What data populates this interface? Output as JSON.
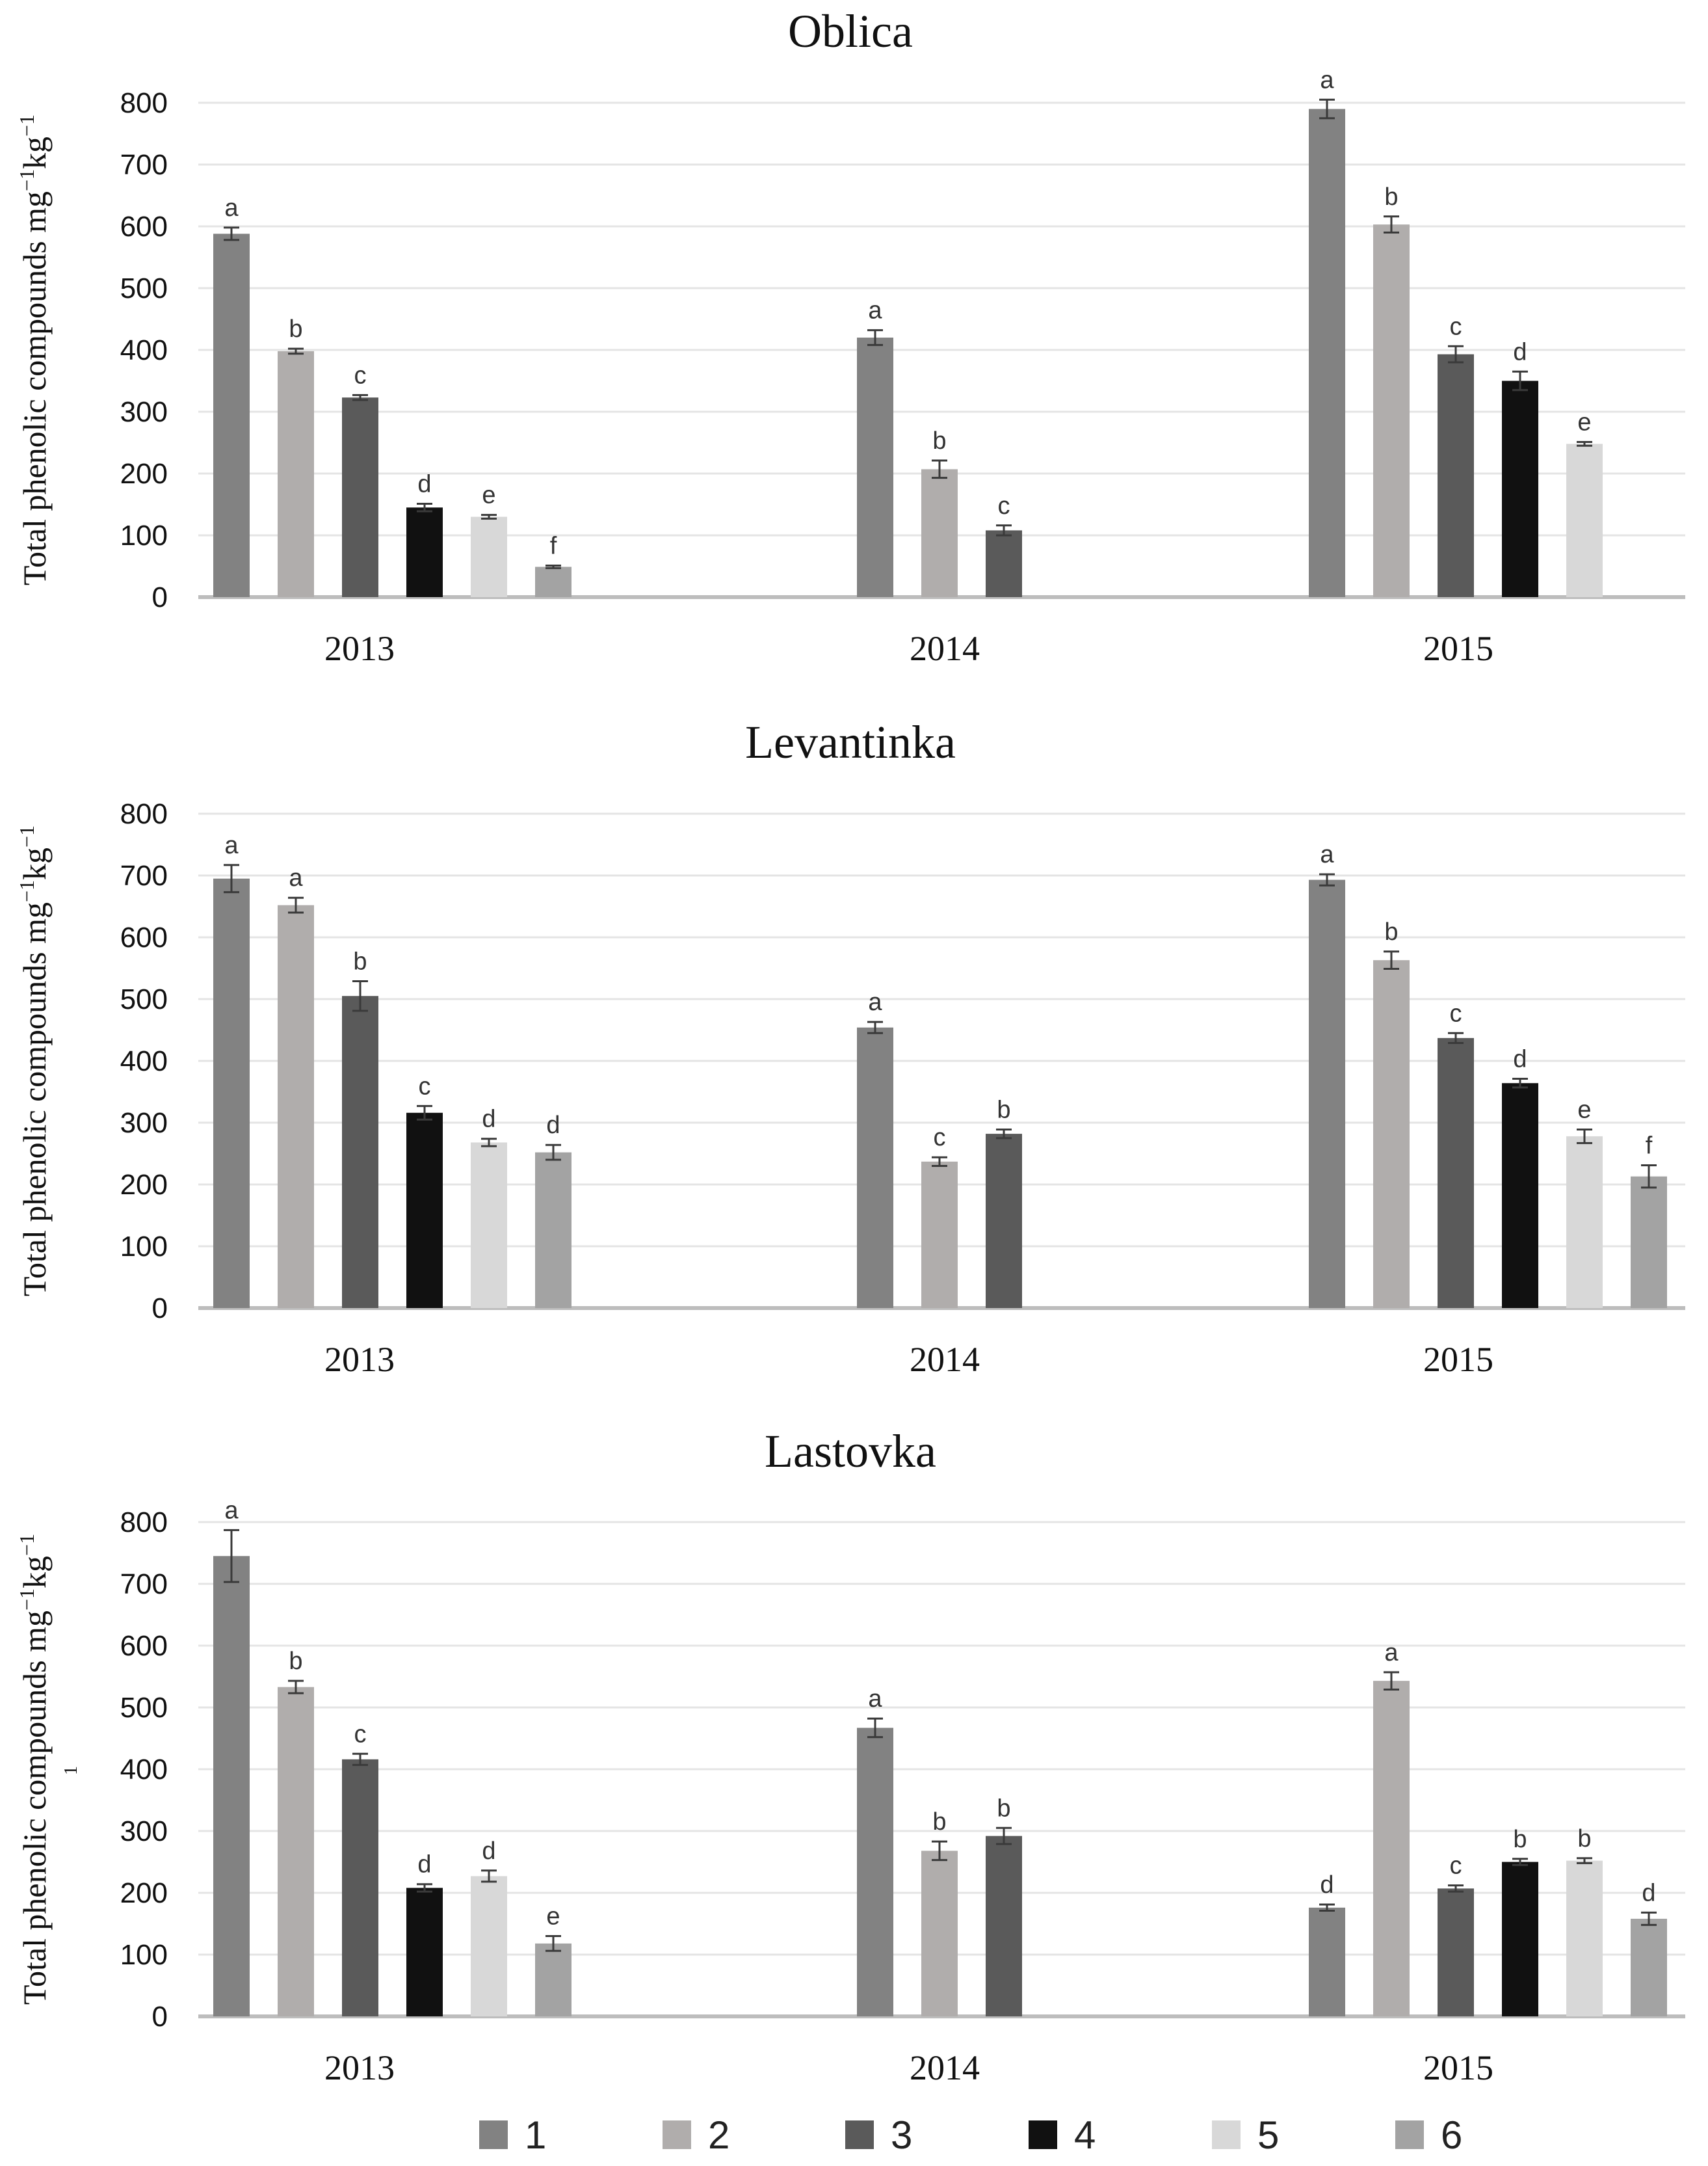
{
  "figure": {
    "stray_mark": "1"
  },
  "series_colors": {
    "1": "#828282",
    "2": "#b0adac",
    "3": "#5a5a5a",
    "4": "#111111",
    "5": "#d8d8d8",
    "6": "#a3a3a3"
  },
  "legend": {
    "items": [
      "1",
      "2",
      "3",
      "4",
      "5",
      "6"
    ]
  },
  "chart_data": [
    {
      "type": "bar",
      "title": "Oblica",
      "ylabel": "Total phenolic  compounds mg",
      "ylabel_sup1": "−1",
      "ylabel_unit": "kg",
      "ylabel_sup2": "−1",
      "ylim": [
        0,
        800
      ],
      "yticks": [
        "0",
        "100",
        "200",
        "300",
        "400",
        "500",
        "600",
        "700",
        "800"
      ],
      "categories": [
        "2013",
        "2014",
        "2015"
      ],
      "grid": true,
      "series": [
        {
          "name": "1",
          "values": [
            588,
            420,
            790
          ],
          "errors": [
            10,
            12,
            15
          ],
          "letters": [
            "a",
            "a",
            "a"
          ]
        },
        {
          "name": "2",
          "values": [
            398,
            207,
            603
          ],
          "errors": [
            4,
            14,
            13
          ],
          "letters": [
            "b",
            "b",
            "b"
          ]
        },
        {
          "name": "3",
          "values": [
            323,
            108,
            393
          ],
          "errors": [
            4,
            8,
            13
          ],
          "letters": [
            "c",
            "c",
            "c"
          ]
        },
        {
          "name": "4",
          "values": [
            145,
            null,
            350
          ],
          "errors": [
            6,
            null,
            15
          ],
          "letters": [
            "d",
            null,
            "d"
          ]
        },
        {
          "name": "5",
          "values": [
            130,
            null,
            248
          ],
          "errors": [
            3,
            null,
            3
          ],
          "letters": [
            "e",
            null,
            "e"
          ]
        },
        {
          "name": "6",
          "values": [
            49,
            null,
            null
          ],
          "errors": [
            2,
            null,
            null
          ],
          "letters": [
            "f",
            null,
            null
          ]
        }
      ]
    },
    {
      "type": "bar",
      "title": "Levantinka",
      "ylabel": "Total phenolic  compounds mg",
      "ylabel_sup1": "−1",
      "ylabel_unit": "kg",
      "ylabel_sup2": "−1",
      "ylim": [
        0,
        800
      ],
      "yticks": [
        "0",
        "100",
        "200",
        "300",
        "400",
        "500",
        "600",
        "700",
        "800"
      ],
      "categories": [
        "2013",
        "2014",
        "2015"
      ],
      "grid": true,
      "series": [
        {
          "name": "1",
          "values": [
            695,
            454,
            693
          ],
          "errors": [
            22,
            9,
            9
          ],
          "letters": [
            "a",
            "a",
            "a"
          ]
        },
        {
          "name": "2",
          "values": [
            652,
            237,
            563
          ],
          "errors": [
            12,
            7,
            14
          ],
          "letters": [
            "a",
            "c",
            "b"
          ]
        },
        {
          "name": "3",
          "values": [
            505,
            282,
            437
          ],
          "errors": [
            24,
            7,
            8
          ],
          "letters": [
            "b",
            "b",
            "c"
          ]
        },
        {
          "name": "4",
          "values": [
            316,
            null,
            364
          ],
          "errors": [
            11,
            null,
            7
          ],
          "letters": [
            "c",
            null,
            "d"
          ]
        },
        {
          "name": "5",
          "values": [
            268,
            null,
            278
          ],
          "errors": [
            6,
            null,
            11
          ],
          "letters": [
            "d",
            null,
            "e"
          ]
        },
        {
          "name": "6",
          "values": [
            252,
            null,
            213
          ],
          "errors": [
            12,
            null,
            18
          ],
          "letters": [
            "d",
            null,
            "f"
          ]
        }
      ]
    },
    {
      "type": "bar",
      "title": "Lastovka",
      "ylabel": "Total phenolic  compounds mg",
      "ylabel_sup1": "−1",
      "ylabel_unit": "kg",
      "ylabel_sup2": "−1",
      "ylim": [
        0,
        800
      ],
      "yticks": [
        "0",
        "100",
        "200",
        "300",
        "400",
        "500",
        "600",
        "700",
        "800"
      ],
      "categories": [
        "2013",
        "2014",
        "2015"
      ],
      "grid": true,
      "series": [
        {
          "name": "1",
          "values": [
            745,
            467,
            176
          ],
          "errors": [
            42,
            15,
            5
          ],
          "letters": [
            "a",
            "a",
            "d"
          ]
        },
        {
          "name": "2",
          "values": [
            533,
            268,
            543
          ],
          "errors": [
            10,
            15,
            14
          ],
          "letters": [
            "b",
            "b",
            "a"
          ]
        },
        {
          "name": "3",
          "values": [
            416,
            292,
            207
          ],
          "errors": [
            9,
            13,
            5
          ],
          "letters": [
            "c",
            "b",
            "c"
          ]
        },
        {
          "name": "4",
          "values": [
            208,
            null,
            250
          ],
          "errors": [
            6,
            null,
            5
          ],
          "letters": [
            "d",
            null,
            "b"
          ]
        },
        {
          "name": "5",
          "values": [
            227,
            null,
            252
          ],
          "errors": [
            9,
            null,
            4
          ],
          "letters": [
            "d",
            null,
            "b"
          ]
        },
        {
          "name": "6",
          "values": [
            118,
            null,
            158
          ],
          "errors": [
            12,
            null,
            10
          ],
          "letters": [
            "e",
            null,
            "d"
          ]
        }
      ]
    }
  ]
}
